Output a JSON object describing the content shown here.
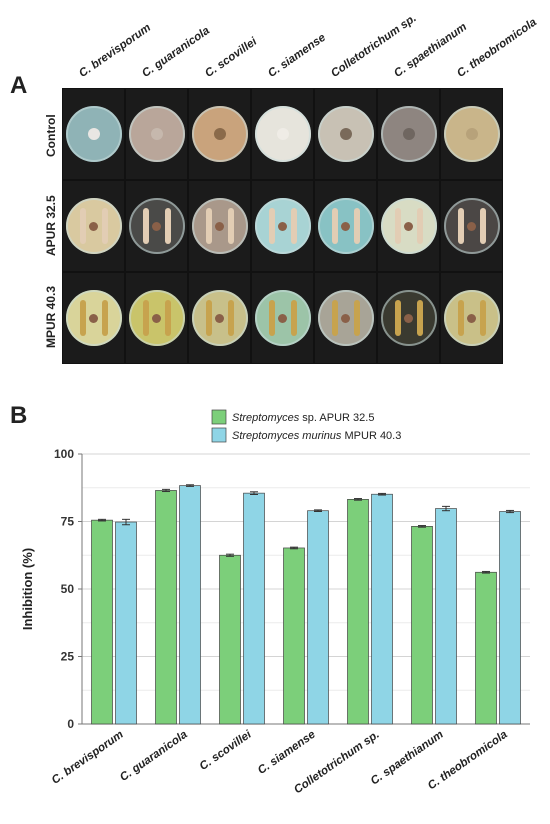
{
  "panel_a": {
    "letter": "A",
    "columns": [
      "C. brevisporum",
      "C. guaranicola",
      "C. scovillei",
      "C. siamense",
      "Colletotrichum sp.",
      "C. spaethianum",
      "C. theobromicola"
    ],
    "rows": [
      "Control",
      "APUR 32.5",
      "MPUR 40.3"
    ]
  },
  "panel_b": {
    "letter": "B"
  },
  "chart_data": {
    "type": "bar",
    "categories": [
      "C. brevisporum",
      "C. guaranicola",
      "C. scovillei",
      "C. siamense",
      "Colletotrichum sp.",
      "C. spaethianum",
      "C. theobromicola"
    ],
    "series": [
      {
        "name": "Streptomyces sp. APUR 32.5",
        "name_italic": "Streptomyces",
        "name_rest": " sp. APUR 32.5",
        "color": "#7ccf7a",
        "values": [
          75.5,
          86.5,
          62.5,
          65.2,
          83.2,
          73.2,
          56.2
        ],
        "errors": [
          0.3,
          0.4,
          0.4,
          0.3,
          0.3,
          0.3,
          0.3
        ]
      },
      {
        "name": "Streptomyces murinus MPUR 40.3",
        "name_italic": "Streptomyces murinus",
        "name_rest": " MPUR 40.3",
        "color": "#8fd5e6",
        "values": [
          74.8,
          88.3,
          85.5,
          79.0,
          85.1,
          79.8,
          78.7
        ],
        "errors": [
          1.0,
          0.3,
          0.5,
          0.3,
          0.3,
          0.8,
          0.4
        ]
      }
    ],
    "xlabel": "",
    "ylabel": "Inhibition (%)",
    "ylim": [
      0,
      100
    ],
    "yticks": [
      0,
      25,
      50,
      75,
      100
    ],
    "grid": true,
    "legend": "top-center"
  }
}
